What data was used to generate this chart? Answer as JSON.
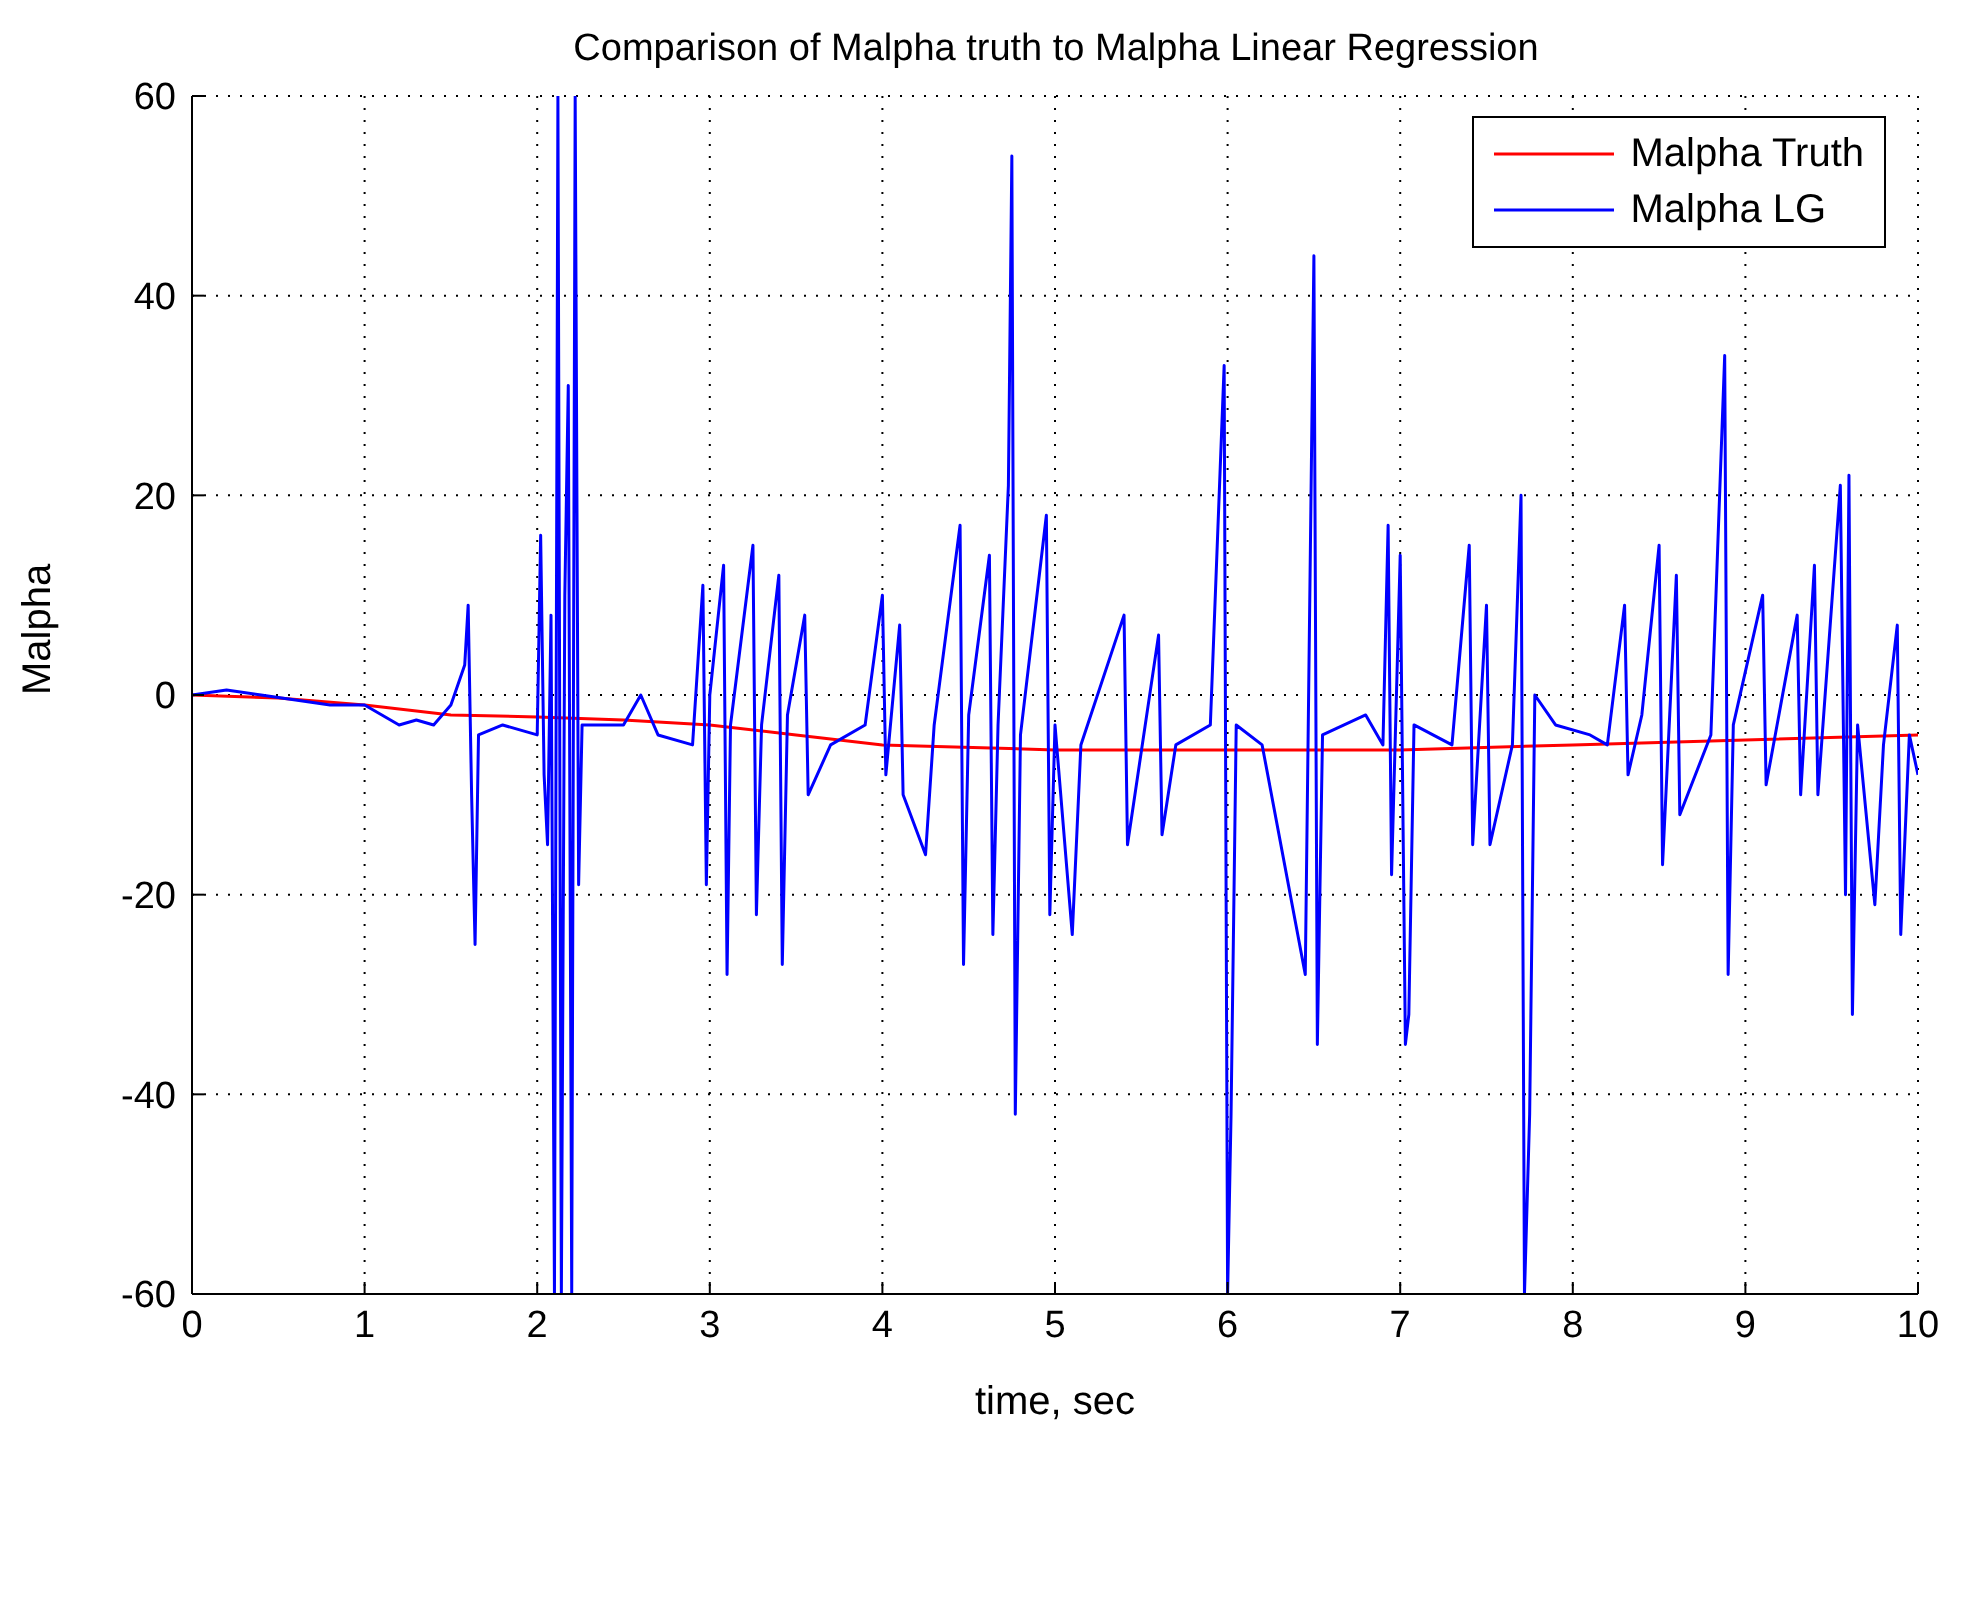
{
  "chart_data": {
    "type": "line",
    "title": "Comparison of Malpha truth to Malpha Linear Regression",
    "xlabel": "time, sec",
    "ylabel": "Malpha",
    "xlim": [
      0,
      10
    ],
    "xticks": [
      0,
      1,
      2,
      3,
      4,
      5,
      6,
      7,
      8,
      9,
      10
    ],
    "ylim": [
      -60,
      60
    ],
    "yticks": [
      -60,
      -40,
      -20,
      0,
      20,
      40,
      60
    ],
    "grid": true,
    "legend": "top right",
    "marker": "none",
    "line_style": "solid",
    "series": [
      {
        "name": "Malpha Truth",
        "color": "#ff0000",
        "x": [
          0,
          0.5,
          1,
          1.5,
          2,
          2.5,
          3,
          3.5,
          4,
          5,
          6,
          7,
          8,
          9,
          10
        ],
        "values": [
          0,
          -0.3,
          -1,
          -2,
          -2.2,
          -2.5,
          -3,
          -4,
          -5,
          -5.5,
          -5.5,
          -5.5,
          -5,
          -4.5,
          -4
        ]
      },
      {
        "name": "Malpha LG",
        "color": "#0000ff",
        "x": [
          0,
          0.2,
          0.4,
          0.6,
          0.8,
          1.0,
          1.1,
          1.2,
          1.3,
          1.4,
          1.5,
          1.58,
          1.6,
          1.62,
          1.64,
          1.66,
          1.8,
          2.0,
          2.02,
          2.04,
          2.06,
          2.08,
          2.1,
          2.12,
          2.14,
          2.16,
          2.18,
          2.2,
          2.22,
          2.24,
          2.26,
          2.5,
          2.6,
          2.7,
          2.9,
          2.96,
          2.98,
          3.0,
          3.08,
          3.1,
          3.12,
          3.25,
          3.27,
          3.3,
          3.4,
          3.42,
          3.45,
          3.55,
          3.57,
          3.7,
          3.9,
          4.0,
          4.02,
          4.1,
          4.12,
          4.25,
          4.3,
          4.45,
          4.47,
          4.5,
          4.62,
          4.64,
          4.67,
          4.73,
          4.75,
          4.77,
          4.8,
          4.95,
          4.97,
          5.0,
          5.1,
          5.15,
          5.4,
          5.42,
          5.6,
          5.62,
          5.7,
          5.9,
          5.98,
          6.0,
          6.02,
          6.05,
          6.2,
          6.45,
          6.5,
          6.52,
          6.55,
          6.8,
          6.9,
          6.93,
          6.95,
          7.0,
          7.03,
          7.05,
          7.08,
          7.3,
          7.4,
          7.42,
          7.5,
          7.52,
          7.65,
          7.7,
          7.72,
          7.75,
          7.78,
          7.9,
          8.1,
          8.2,
          8.3,
          8.32,
          8.4,
          8.5,
          8.52,
          8.6,
          8.62,
          8.8,
          8.88,
          8.9,
          8.93,
          9.1,
          9.12,
          9.3,
          9.32,
          9.4,
          9.42,
          9.55,
          9.58,
          9.6,
          9.62,
          9.65,
          9.75,
          9.8,
          9.88,
          9.9,
          9.95,
          10
        ],
        "values": [
          0,
          0.5,
          0,
          -0.5,
          -1,
          -1,
          -2,
          -3,
          -2.5,
          -3,
          -1,
          3,
          9,
          -10,
          -25,
          -4,
          -3,
          -4,
          16,
          -8,
          -15,
          8,
          -60,
          60,
          -60,
          10,
          31,
          -60,
          60,
          -19,
          -3,
          -3,
          0,
          -4,
          -5,
          11,
          -19,
          0,
          13,
          -28,
          -3,
          15,
          -22,
          -3,
          12,
          -27,
          -2,
          8,
          -10,
          -5,
          -3,
          10,
          -8,
          7,
          -10,
          -16,
          -3,
          17,
          -27,
          -2,
          14,
          -24,
          -3,
          21,
          54,
          -42,
          -4,
          18,
          -22,
          -3,
          -24,
          -5,
          8,
          -15,
          6,
          -14,
          -5,
          -3,
          33,
          -60,
          -42,
          -3,
          -5,
          -28,
          44,
          -35,
          -4,
          -2,
          -5,
          17,
          -18,
          14,
          -35,
          -32,
          -3,
          -5,
          15,
          -15,
          9,
          -15,
          -5,
          20,
          -60,
          -42,
          0,
          -3,
          -4,
          -5,
          9,
          -8,
          -2,
          15,
          -17,
          12,
          -12,
          -4,
          34,
          -28,
          -3,
          10,
          -9,
          8,
          -10,
          13,
          -10,
          21,
          -20,
          22,
          -32,
          -3,
          -21,
          -5,
          7,
          -24,
          -4,
          -8
        ]
      }
    ]
  }
}
